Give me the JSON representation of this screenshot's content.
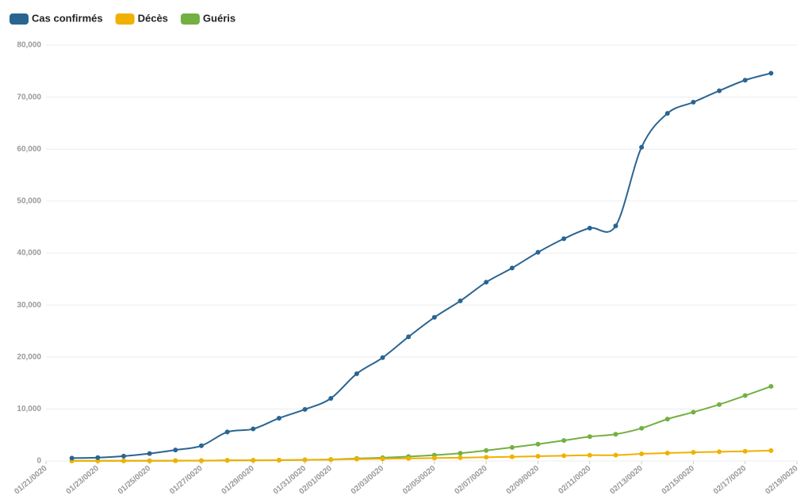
{
  "chart_data": {
    "type": "line",
    "x": [
      "01/22/0020",
      "01/23/0020",
      "01/24/0020",
      "01/25/0020",
      "01/26/0020",
      "01/27/0020",
      "01/28/0020",
      "01/29/0020",
      "01/30/0020",
      "01/31/0020",
      "02/01/0020",
      "02/02/0020",
      "02/03/0020",
      "02/04/0020",
      "02/05/0020",
      "02/06/0020",
      "02/07/0020",
      "02/08/0020",
      "02/09/0020",
      "02/10/0020",
      "02/11/0020",
      "02/12/0020",
      "02/13/0020",
      "02/14/0020",
      "02/15/0020",
      "02/16/0020",
      "02/17/0020",
      "02/18/0020"
    ],
    "series": [
      {
        "name": "Cas confirmés",
        "color": "#2a6592",
        "values": [
          555,
          653,
          941,
          1434,
          2118,
          2927,
          5578,
          6166,
          8234,
          9927,
          12038,
          16787,
          19881,
          23892,
          27635,
          30794,
          34391,
          37120,
          40150,
          42762,
          44802,
          45221,
          60368,
          66885,
          69030,
          71224,
          73258,
          74600
        ]
      },
      {
        "name": "Décès",
        "color": "#f0b100",
        "values": [
          17,
          18,
          26,
          42,
          56,
          82,
          131,
          133,
          171,
          213,
          259,
          362,
          426,
          492,
          564,
          634,
          719,
          806,
          906,
          1013,
          1113,
          1118,
          1371,
          1523,
          1666,
          1770,
          1868,
          2007
        ]
      },
      {
        "name": "Guéris",
        "color": "#73b043",
        "values": [
          28,
          30,
          36,
          39,
          52,
          61,
          107,
          126,
          143,
          222,
          284,
          472,
          623,
          852,
          1124,
          1487,
          2011,
          2616,
          3244,
          3946,
          4683,
          5150,
          6295,
          8058,
          9395,
          10865,
          12583,
          14352
        ]
      }
    ],
    "xticks": [
      "01/21/0020",
      "01/23/0020",
      "01/25/0020",
      "01/27/0020",
      "01/29/0020",
      "01/31/0020",
      "02/01/0020",
      "02/03/0020",
      "02/05/0020",
      "02/07/0020",
      "02/09/0020",
      "02/11/0020",
      "02/13/0020",
      "02/15/0020",
      "02/17/0020",
      "02/19/0020"
    ],
    "ylim": [
      0,
      80000
    ],
    "yticks": [
      0,
      {
        "value": 10000,
        "label": "10,000"
      },
      {
        "value": 20000,
        "label": "20,000"
      },
      {
        "value": 30000,
        "label": "30,000"
      },
      {
        "value": 40000,
        "label": "40,000"
      },
      {
        "value": 50000,
        "label": "50,000"
      },
      {
        "value": 60000,
        "label": "60,000"
      },
      {
        "value": 70000,
        "label": "70,000"
      },
      {
        "value": 80000,
        "label": "80,000"
      }
    ],
    "grid": true
  }
}
